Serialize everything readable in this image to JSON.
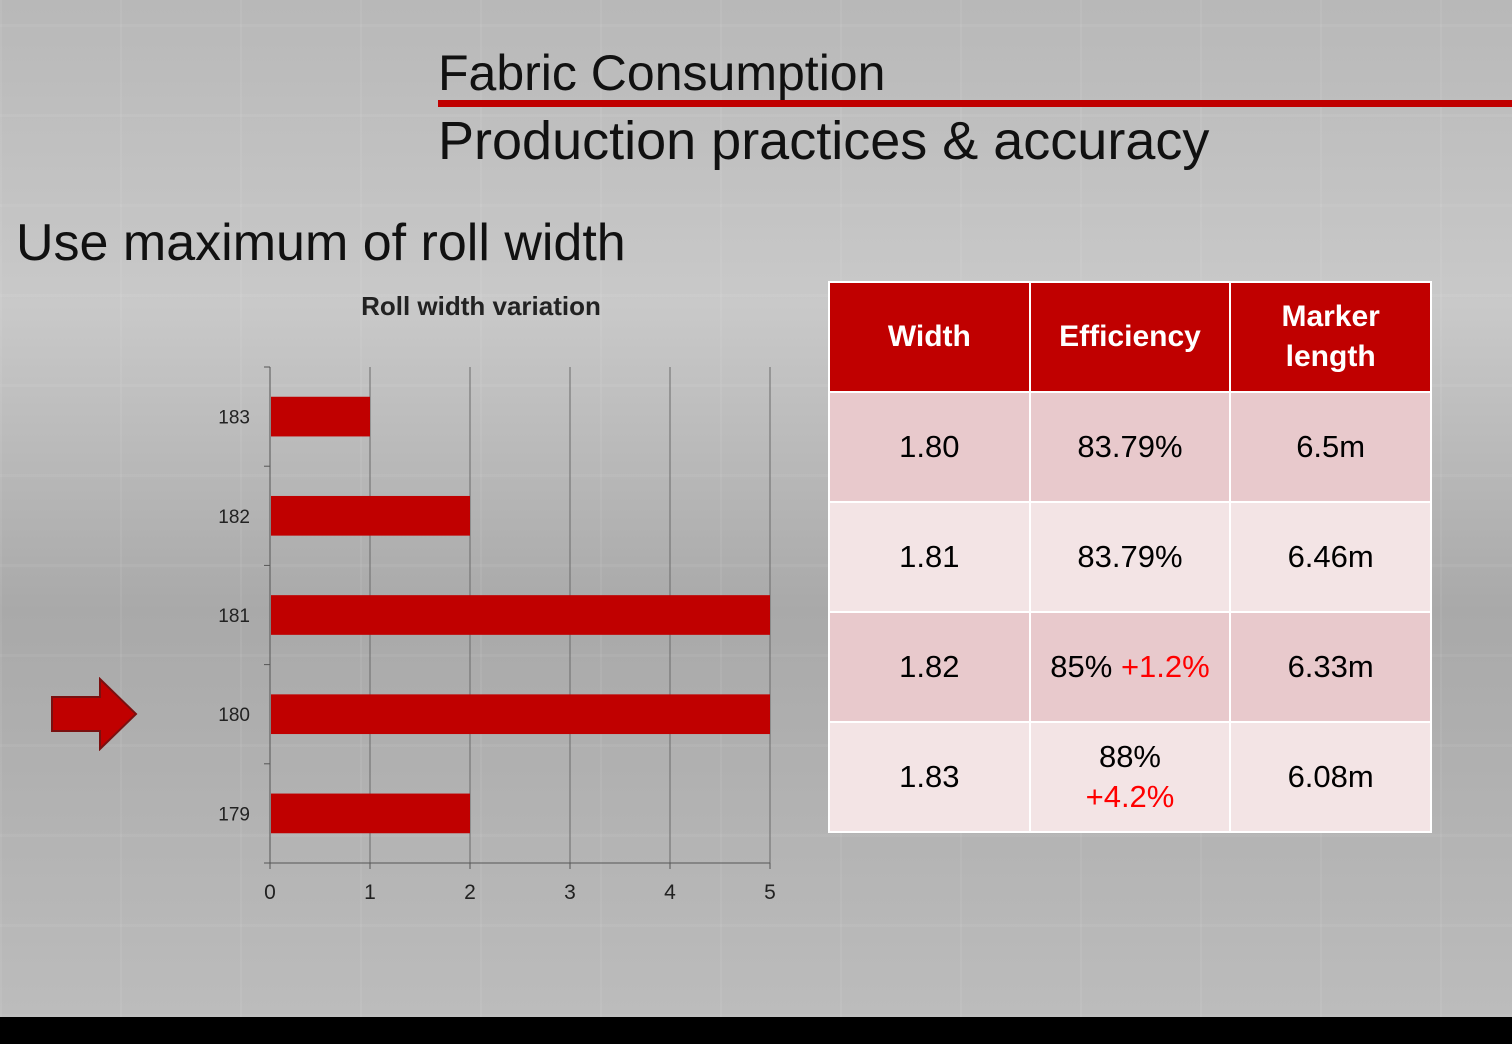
{
  "header": {
    "title": "Fabric Consumption",
    "subtitle": "Production practices & accuracy"
  },
  "section_title": "Use maximum of roll width",
  "colors": {
    "accent": "#c00000",
    "delta": "#ff0000",
    "row_dark": "#e8c9cc",
    "row_light": "#f3e4e5"
  },
  "chart_data": {
    "type": "bar",
    "orientation": "horizontal",
    "title": "Roll width variation",
    "categories": [
      "183",
      "182",
      "181",
      "180",
      "179"
    ],
    "values": [
      1,
      2,
      5,
      5,
      2
    ],
    "xlim": [
      0,
      5
    ],
    "xticks": [
      "0",
      "1",
      "2",
      "3",
      "4",
      "5"
    ],
    "grid": "vertical",
    "legend": "none",
    "highlighted_category": "180",
    "highlight_marker": "arrow-right-icon"
  },
  "table": {
    "headers": [
      "Width",
      "Efficiency",
      "Marker length"
    ],
    "rows": [
      {
        "width": "1.80",
        "efficiency": "83.79%",
        "delta": "",
        "marker": "6.5m"
      },
      {
        "width": "1.81",
        "efficiency": "83.79%",
        "delta": "",
        "marker": "6.46m"
      },
      {
        "width": "1.82",
        "efficiency": "85%",
        "delta": "+1.2%",
        "marker": "6.33m"
      },
      {
        "width": "1.83",
        "efficiency": "88%",
        "delta": "+4.2%",
        "marker": "6.08m"
      }
    ]
  }
}
